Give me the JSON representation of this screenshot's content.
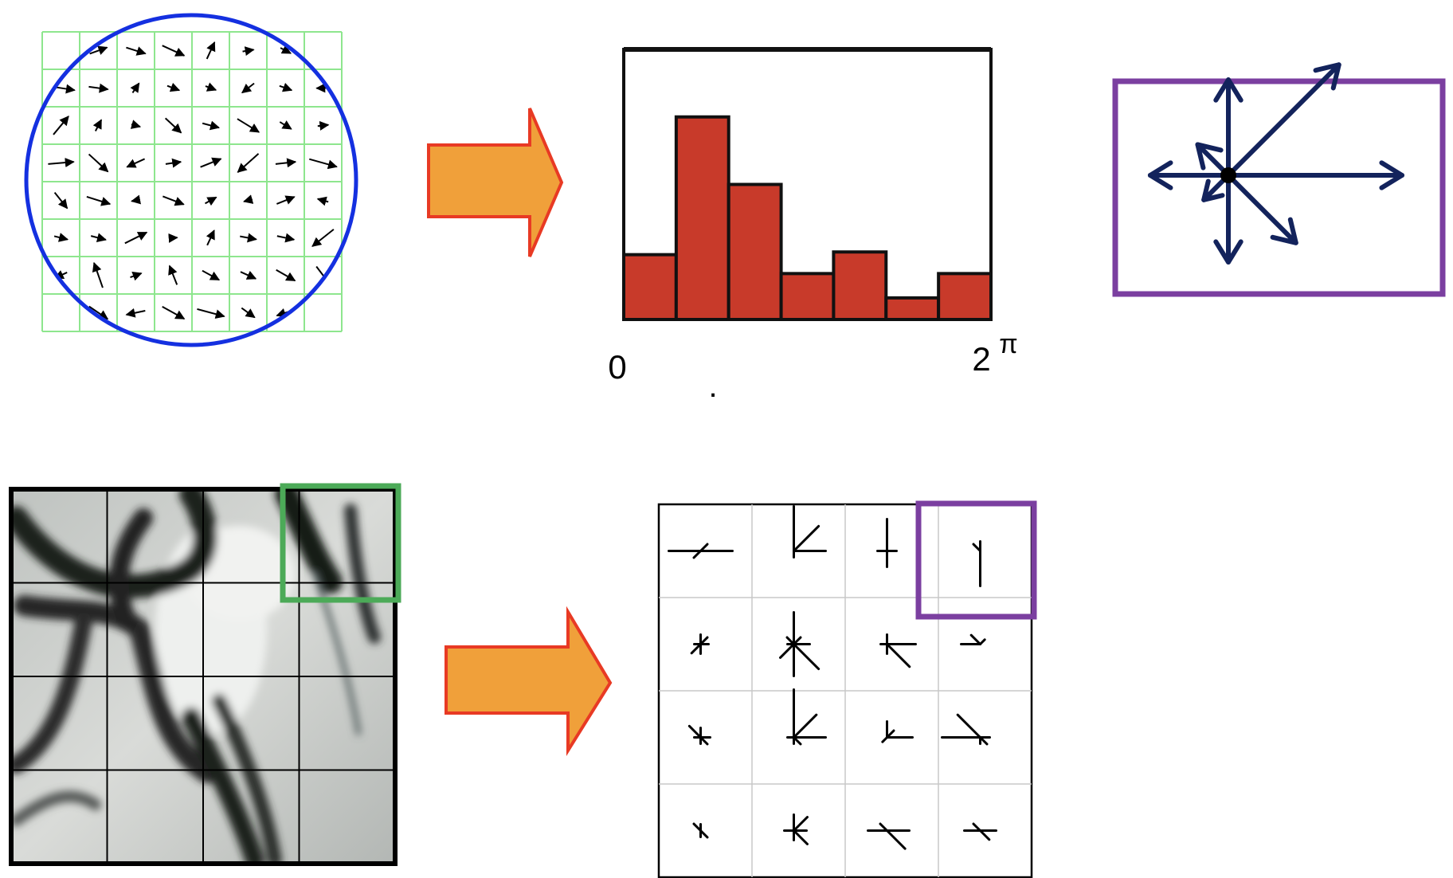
{
  "histogram": {
    "x_start_label": "0",
    "x_end_label": "2",
    "x_end_superscript": "π",
    "stray_mark": ".",
    "bar_values": [
      0.24,
      0.75,
      0.5,
      0.17,
      0.25,
      0.08,
      0.17
    ],
    "bar_color": "#c83a2a"
  },
  "colors": {
    "circle": "#1430e0",
    "grid": "#8ee68e",
    "arrow_fill": "#f0a03a",
    "arrow_stroke": "#e83a24",
    "descriptor_box": "#7b3fa0",
    "descriptor_arrows": "#13235c",
    "patch_highlight": "#4caa58"
  },
  "icons": {
    "gradient_field": "gradient-vector-field-icon",
    "big_arrow": "right-arrow-icon",
    "keypoint": "keypoint-dot-icon",
    "image_patch": "grayscale-image-patch-icon"
  },
  "descriptor_rays": [
    {
      "angle": 0,
      "length": 1.0
    },
    {
      "angle": 45,
      "length": 0.9
    },
    {
      "angle": 90,
      "length": 0.55
    },
    {
      "angle": 135,
      "length": 0.25
    },
    {
      "angle": 180,
      "length": 0.45
    },
    {
      "angle": 225,
      "length": 0.2
    },
    {
      "angle": 270,
      "length": 0.5
    },
    {
      "angle": 315,
      "length": 0.55
    }
  ]
}
